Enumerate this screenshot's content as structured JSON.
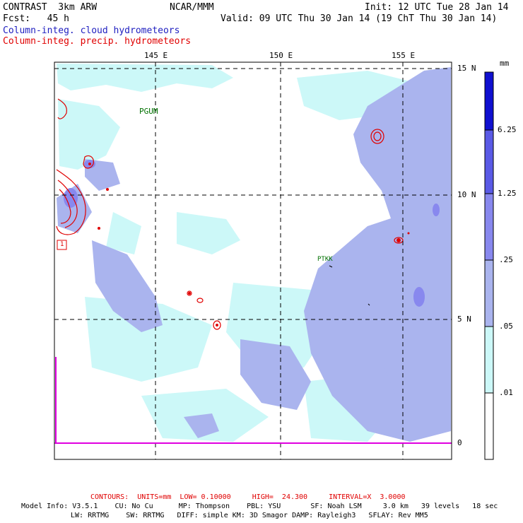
{
  "header": {
    "model": "CONTRAST  3km ARW",
    "org": "NCAR/MMM",
    "init": "Init: 12 UTC Tue 28 Jan 14",
    "fcst": "Fcst:   45 h",
    "valid": "Valid: 09 UTC Thu 30 Jan 14 (19 ChT Thu 30 Jan 14)",
    "field1": "Column-integ. cloud hydrometeors",
    "field2": "Column-integ. precip. hydrometeors"
  },
  "map": {
    "lon_labels": [
      "145 E",
      "150 E",
      "155 E"
    ],
    "lat_labels": [
      "15 N",
      "10 N",
      "5 N",
      "0"
    ],
    "stations": [
      "PGUM",
      "PTKK"
    ],
    "box_label": "1"
  },
  "colorbar": {
    "unit": "mm",
    "levels": [
      "6.25",
      "1.25",
      ".25",
      ".05",
      ".01"
    ],
    "colors": [
      "#ffffff",
      "#ccf8f8",
      "#aab4ee",
      "#8888ee",
      "#5a5ae6",
      "#1010d0"
    ]
  },
  "footer": {
    "contours": "CONTOURS:  UNITS=mm  LOW= 0.10000     HIGH=  24.300     INTERVAL=X  3.0000",
    "info1": "Model Info: V3.5.1    CU: No Cu      MP: Thompson    PBL: YSU       SF: Noah LSM     3.0 km   39 levels   18 sec",
    "info2": "LW: RRTMG    SW: RRTMG   DIFF: simple KM: 3D Smagor DAMP: Rayleigh3   SFLAY: Rev MM5"
  },
  "colors": {
    "cloud_light": "#ccf8f8",
    "cloud_mid": "#aab4ee",
    "cloud_dark": "#8888ee",
    "precip_contour": "#e00000",
    "axis_line": "#e000e0"
  }
}
